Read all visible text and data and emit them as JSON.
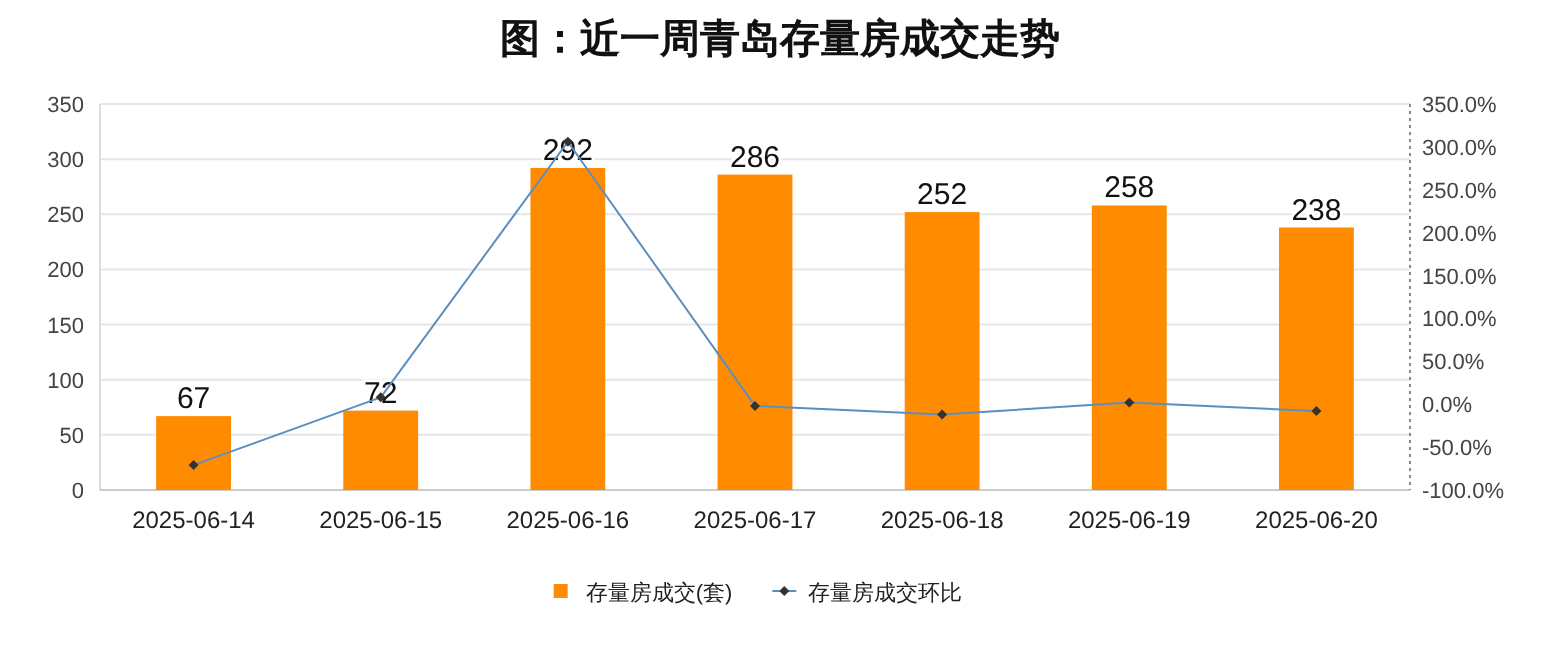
{
  "chart_data": {
    "type": "bar",
    "title": "图：近一周青岛存量房成交走势",
    "categories": [
      "2025-06-14",
      "2025-06-15",
      "2025-06-16",
      "2025-06-17",
      "2025-06-18",
      "2025-06-19",
      "2025-06-20"
    ],
    "series": [
      {
        "name": "存量房成交(套)",
        "color": "#ff8c00",
        "values": [
          67,
          72,
          292,
          286,
          252,
          258,
          238
        ],
        "data_labels": true
      },
      {
        "name": "存量房成交环比",
        "type": "line",
        "axis": "y2",
        "color": "#5b8fc0",
        "marker": "diamond",
        "values": [
          -71,
          8,
          306,
          -2,
          -12,
          2,
          -8
        ]
      }
    ],
    "ylim": [
      0,
      350
    ],
    "yticks": [
      0,
      50,
      100,
      150,
      200,
      250,
      300,
      350
    ],
    "y2lim": [
      -100,
      350
    ],
    "y2ticks": [
      {
        "value": -100,
        "label": "-100.0%"
      },
      {
        "value": -50,
        "label": "-50.0%"
      },
      {
        "value": 0,
        "label": "0.0%"
      },
      {
        "value": 50,
        "label": "50.0%"
      },
      {
        "value": 100,
        "label": "100.0%"
      },
      {
        "value": 150,
        "label": "150.0%"
      },
      {
        "value": 200,
        "label": "200.0%"
      },
      {
        "value": 250,
        "label": "250.0%"
      },
      {
        "value": 300,
        "label": "300.0%"
      },
      {
        "value": 350,
        "label": "350.0%"
      }
    ],
    "grid": "y",
    "legend": "bottom"
  }
}
